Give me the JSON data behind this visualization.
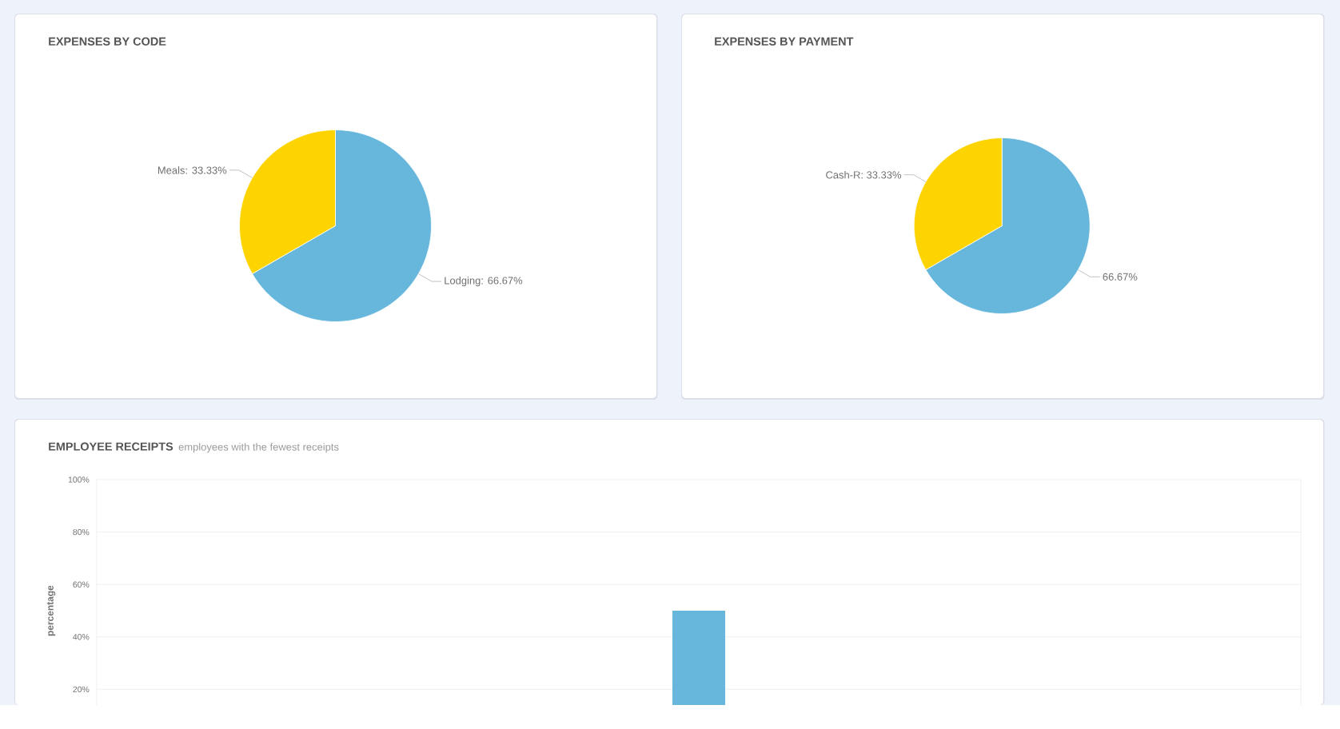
{
  "chart_data": [
    {
      "type": "pie",
      "title": "EXPENSES BY CODE",
      "categories": [
        "Lodging",
        "Meals"
      ],
      "values": [
        66.67,
        33.33
      ],
      "colors": [
        "#67b7dc",
        "#fdd400"
      ],
      "value_labels": [
        ": 66.67%",
        ": 33.33%"
      ]
    },
    {
      "type": "pie",
      "title": "EXPENSES BY PAYMENT",
      "categories": [
        null,
        "Cash-R"
      ],
      "values": [
        66.67,
        33.33
      ],
      "colors": [
        "#67b7dc",
        "#fdd400"
      ],
      "value_labels": [
        "66.67%",
        ": 33.33%"
      ]
    },
    {
      "type": "bar",
      "title": "EMPLOYEE RECEIPTS",
      "subtitle": "employees with the fewest receipts",
      "ylabel": "percentage",
      "categories": [
        null
      ],
      "values": [
        50
      ],
      "color": "#67b7dc",
      "ylim": [
        14,
        100
      ],
      "yticks": [
        {
          "value": 20,
          "label": "20%"
        },
        {
          "value": 40,
          "label": "40%"
        },
        {
          "value": 60,
          "label": "60%"
        },
        {
          "value": 80,
          "label": "80%"
        },
        {
          "value": 100,
          "label": "100%"
        }
      ],
      "grid": "y"
    }
  ]
}
